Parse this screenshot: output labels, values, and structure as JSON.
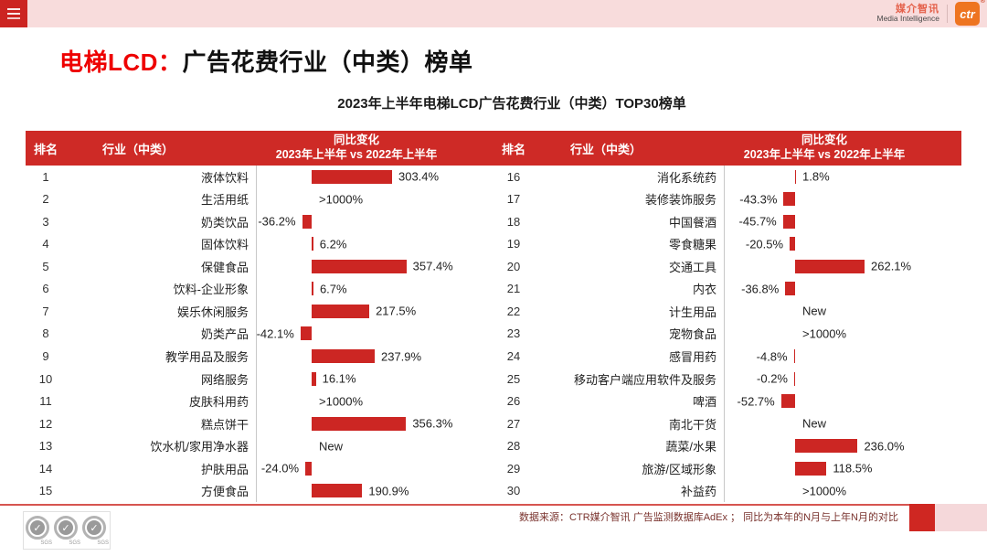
{
  "topbar": {
    "brand_cn": "媒介智讯",
    "brand_en": "Media Intelligence",
    "logo_text": "ctr",
    "registered_mark": "®"
  },
  "title": {
    "highlight": "电梯LCD：",
    "rest": "广告花费行业（中类）榜单"
  },
  "subtitle": "2023年上半年电梯LCD广告花费行业（中类）TOP30榜单",
  "table_headers": {
    "rank": "排名",
    "industry": "行业（中类）",
    "change_line1": "同比变化",
    "change_line2": "2023年上半年 vs 2022年上半年"
  },
  "chart_data": {
    "type": "bar",
    "orientation": "horizontal",
    "title": "2023年上半年电梯LCD广告花费行业（中类）TOP30榜单",
    "unit": "%",
    "legend_position": "none",
    "value_axis_note": "bar length proportional to % change; '>1000%' and 'New' shown as text only, no bar",
    "items": [
      {
        "rank": 1,
        "category": "液体饮料",
        "label": "303.4%",
        "value": 303.4
      },
      {
        "rank": 2,
        "category": "生活用纸",
        "label": ">1000%",
        "value": null
      },
      {
        "rank": 3,
        "category": "奶类饮品",
        "label": "-36.2%",
        "value": -36.2
      },
      {
        "rank": 4,
        "category": "固体饮料",
        "label": "6.2%",
        "value": 6.2
      },
      {
        "rank": 5,
        "category": "保健食品",
        "label": "357.4%",
        "value": 357.4
      },
      {
        "rank": 6,
        "category": "饮料-企业形象",
        "label": "6.7%",
        "value": 6.7
      },
      {
        "rank": 7,
        "category": "娱乐休闲服务",
        "label": "217.5%",
        "value": 217.5
      },
      {
        "rank": 8,
        "category": "奶类产品",
        "label": "-42.1%",
        "value": -42.1
      },
      {
        "rank": 9,
        "category": "教学用品及服务",
        "label": "237.9%",
        "value": 237.9
      },
      {
        "rank": 10,
        "category": "网络服务",
        "label": "16.1%",
        "value": 16.1
      },
      {
        "rank": 11,
        "category": "皮肤科用药",
        "label": ">1000%",
        "value": null
      },
      {
        "rank": 12,
        "category": "糕点饼干",
        "label": "356.3%",
        "value": 356.3
      },
      {
        "rank": 13,
        "category": "饮水机/家用净水器",
        "label": "New",
        "value": null
      },
      {
        "rank": 14,
        "category": "护肤用品",
        "label": "-24.0%",
        "value": -24.0
      },
      {
        "rank": 15,
        "category": "方便食品",
        "label": "190.9%",
        "value": 190.9
      },
      {
        "rank": 16,
        "category": "消化系统药",
        "label": "1.8%",
        "value": 1.8
      },
      {
        "rank": 17,
        "category": "装修装饰服务",
        "label": "-43.3%",
        "value": -43.3
      },
      {
        "rank": 18,
        "category": "中国餐酒",
        "label": "-45.7%",
        "value": -45.7
      },
      {
        "rank": 19,
        "category": "零食糖果",
        "label": "-20.5%",
        "value": -20.5
      },
      {
        "rank": 20,
        "category": "交通工具",
        "label": "262.1%",
        "value": 262.1
      },
      {
        "rank": 21,
        "category": "内衣",
        "label": "-36.8%",
        "value": -36.8
      },
      {
        "rank": 22,
        "category": "计生用品",
        "label": "New",
        "value": null
      },
      {
        "rank": 23,
        "category": "宠物食品",
        "label": ">1000%",
        "value": null
      },
      {
        "rank": 24,
        "category": "感冒用药",
        "label": "-4.8%",
        "value": -4.8
      },
      {
        "rank": 25,
        "category": "移动客户端应用软件及服务",
        "label": "-0.2%",
        "value": -0.2
      },
      {
        "rank": 26,
        "category": "啤酒",
        "label": "-52.7%",
        "value": -52.7
      },
      {
        "rank": 27,
        "category": "南北干货",
        "label": "New",
        "value": null
      },
      {
        "rank": 28,
        "category": "蔬菜/水果",
        "label": "236.0%",
        "value": 236.0
      },
      {
        "rank": 29,
        "category": "旅游/区域形象",
        "label": "118.5%",
        "value": 118.5
      },
      {
        "rank": 30,
        "category": "补益药",
        "label": ">1000%",
        "value": null
      }
    ]
  },
  "footer": {
    "source": "数据来源：CTR媒介智讯 广告监测数据库AdEx ；  同比为本年的N月与上年N月的对比",
    "sgs_label": "SGS"
  },
  "colors": {
    "accent_red": "#cc2623",
    "header_red": "#ce2a26",
    "title_red": "#ee0000",
    "topbar_pink": "#f8dcdc",
    "ctr_orange": "#ee7420",
    "bottom_pink": "#f5d8da",
    "axis_gray": "#c8c8c8"
  }
}
